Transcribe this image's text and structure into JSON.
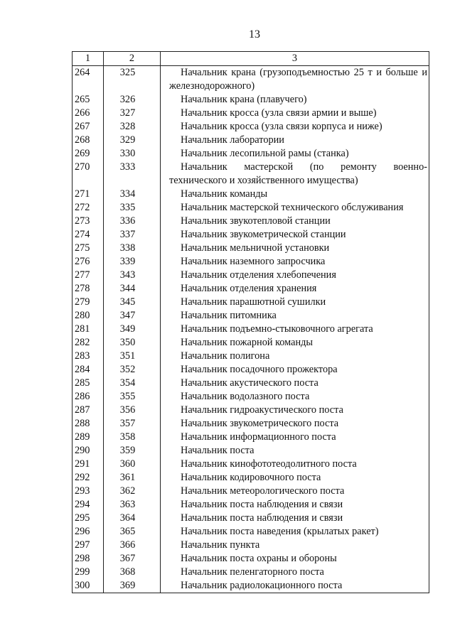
{
  "page_number": "13",
  "table": {
    "headers": [
      "1",
      "2",
      "3"
    ],
    "rows": [
      [
        "264",
        "325",
        "Начальник крана (грузоподъемностью 25 т и больше и железнодорожного)"
      ],
      [
        "265",
        "326",
        "Начальник крана (плавучего)"
      ],
      [
        "266",
        "327",
        "Начальник кросса (узла связи армии и выше)"
      ],
      [
        "267",
        "328",
        "Начальник кросса (узла связи корпуса и ниже)"
      ],
      [
        "268",
        "329",
        "Начальник лаборатории"
      ],
      [
        "269",
        "330",
        "Начальник лесопильной рамы (станка)"
      ],
      [
        "270",
        "333",
        "Начальник мастерской (по ремонту военно-технического и хозяйственного имущества)"
      ],
      [
        "271",
        "334",
        "Начальник команды"
      ],
      [
        "272",
        "335",
        "Начальник мастерской технического обслуживания"
      ],
      [
        "273",
        "336",
        "Начальник звукотепловой станции"
      ],
      [
        "274",
        "337",
        "Начальник звукометрической станции"
      ],
      [
        "275",
        "338",
        "Начальник мельничной установки"
      ],
      [
        "276",
        "339",
        "Начальник наземного запросчика"
      ],
      [
        "277",
        "343",
        "Начальник отделения хлебопечения"
      ],
      [
        "278",
        "344",
        "Начальник отделения хранения"
      ],
      [
        "279",
        "345",
        "Начальник парашютной сушилки"
      ],
      [
        "280",
        "347",
        "Начальник питомника"
      ],
      [
        "281",
        "349",
        "Начальник подъемно-стыковочного агрегата"
      ],
      [
        "282",
        "350",
        "Начальник пожарной команды"
      ],
      [
        "283",
        "351",
        "Начальник полигона"
      ],
      [
        "284",
        "352",
        "Начальник посадочного прожектора"
      ],
      [
        "285",
        "354",
        "Начальник акустического поста"
      ],
      [
        "286",
        "355",
        "Начальник водолазного поста"
      ],
      [
        "287",
        "356",
        "Начальник гидроакустического поста"
      ],
      [
        "288",
        "357",
        "Начальник звукометрического поста"
      ],
      [
        "289",
        "358",
        "Начальник информационного поста"
      ],
      [
        "290",
        "359",
        "Начальник поста"
      ],
      [
        "291",
        "360",
        "Начальник кинофототеодолитного поста"
      ],
      [
        "292",
        "361",
        "Начальник кодировочного поста"
      ],
      [
        "293",
        "362",
        "Начальник метеорологического поста"
      ],
      [
        "294",
        "363",
        "Начальник поста наблюдения и связи"
      ],
      [
        "295",
        "364",
        "Начальник поста наблюдения и связи"
      ],
      [
        "296",
        "365",
        "Начальник поста наведения (крылатых ракет)"
      ],
      [
        "297",
        "366",
        "Начальник пункта"
      ],
      [
        "298",
        "367",
        "Начальник поста охраны и обороны"
      ],
      [
        "299",
        "368",
        "Начальник пеленгаторного поста"
      ],
      [
        "300",
        "369",
        "Начальник радиолокационного поста"
      ]
    ]
  }
}
